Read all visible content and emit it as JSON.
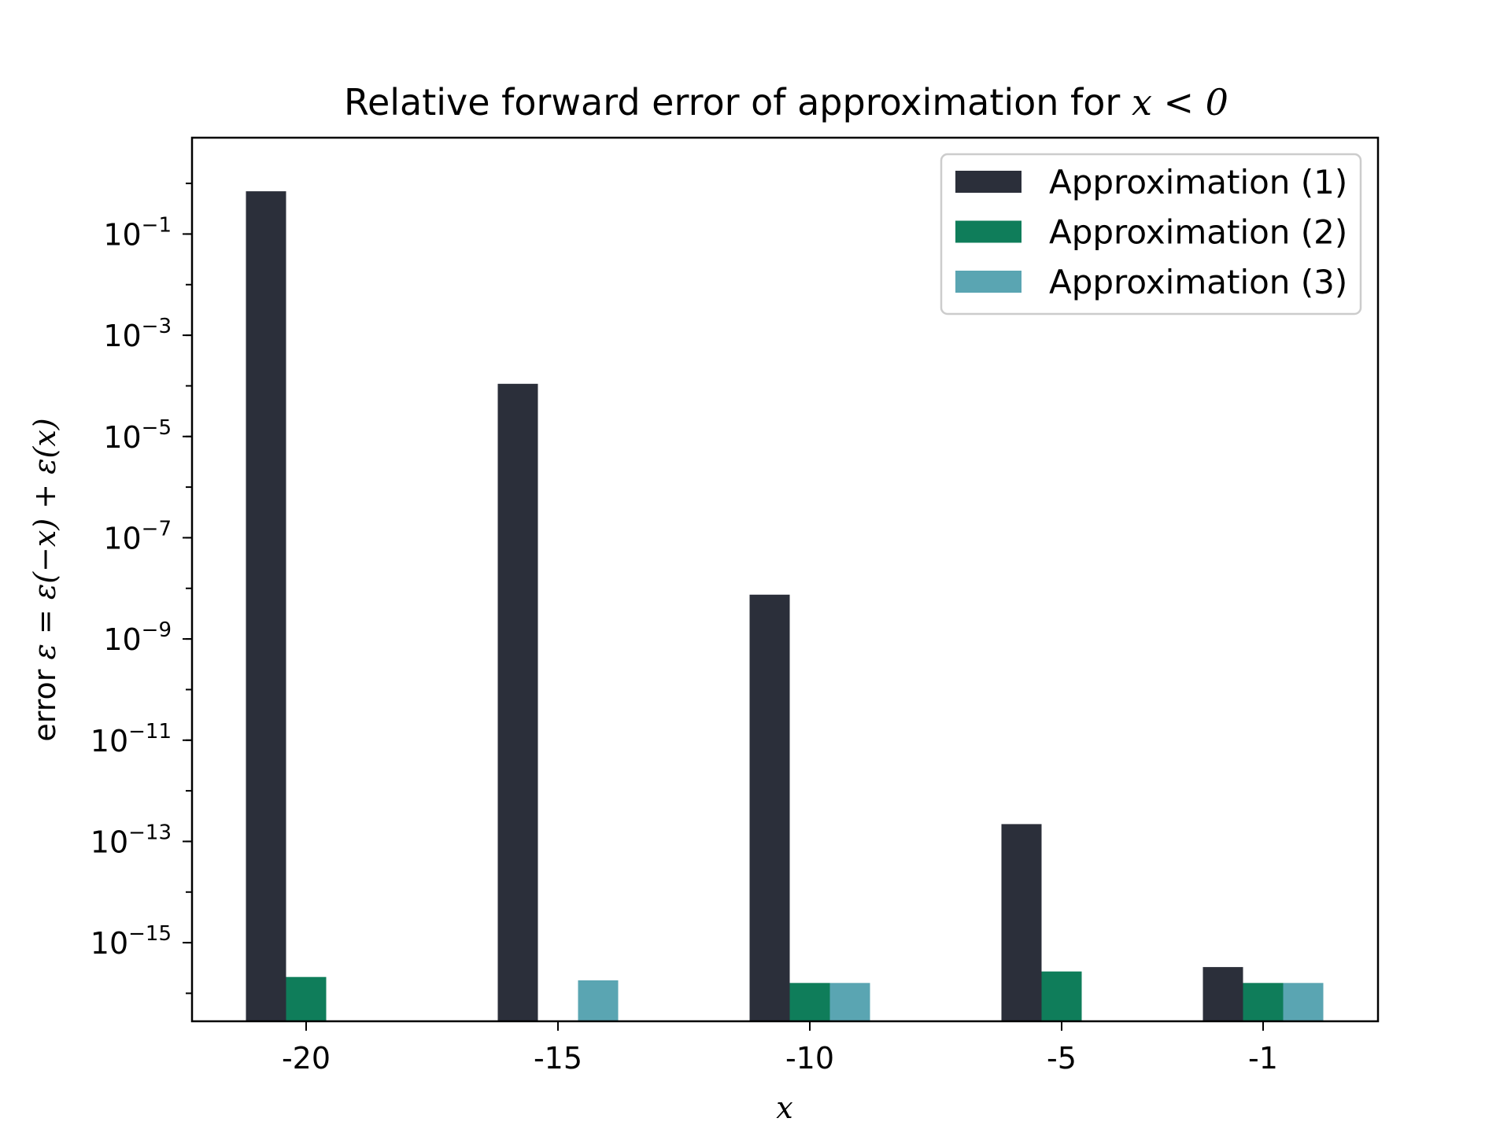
{
  "chart_data": {
    "type": "bar",
    "title": "Relative forward error of approximation for ",
    "title_math": "x < 0",
    "xlabel": "x",
    "ylabel_prefix": "error ",
    "ylabel_math": "ε = ε(−x) + ε(x)",
    "yscale": "log",
    "ylim": [
      2.8e-17,
      8.0
    ],
    "categories": [
      "-20",
      "-15",
      "-10",
      "-5",
      "-1"
    ],
    "y_ticks": [
      {
        "base": "10",
        "exponent": "−1",
        "value": 0.1
      },
      {
        "base": "10",
        "exponent": "−3",
        "value": 0.001
      },
      {
        "base": "10",
        "exponent": "−5",
        "value": 1e-05
      },
      {
        "base": "10",
        "exponent": "−7",
        "value": 1e-07
      },
      {
        "base": "10",
        "exponent": "−9",
        "value": 1e-09
      },
      {
        "base": "10",
        "exponent": "−11",
        "value": 1e-11
      },
      {
        "base": "10",
        "exponent": "−13",
        "value": 1e-13
      },
      {
        "base": "10",
        "exponent": "−15",
        "value": 1e-15
      }
    ],
    "series": [
      {
        "name": "Approximation (1)",
        "color": "#2b2f3a",
        "values": [
          0.7,
          0.00011,
          7.5e-09,
          2.2e-13,
          3.3e-16
        ]
      },
      {
        "name": "Approximation (2)",
        "color": "#0f7d5a",
        "values": [
          2.1e-16,
          null,
          1.6e-16,
          2.7e-16,
          1.6e-16
        ]
      },
      {
        "name": "Approximation (3)",
        "color": "#5aa5b2",
        "values": [
          null,
          1.8e-16,
          1.6e-16,
          null,
          1.6e-16
        ]
      }
    ],
    "legend_position": "top-right"
  }
}
